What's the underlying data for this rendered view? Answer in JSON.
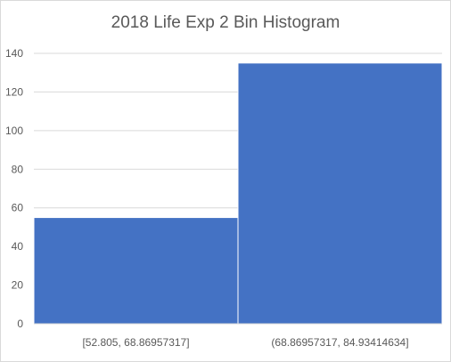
{
  "chart_data": {
    "type": "bar",
    "title": "2018 Life Exp 2 Bin Histogram",
    "categories": [
      "[52.805, 68.86957317]",
      "(68.86957317, 84.93414634]"
    ],
    "values": [
      55,
      135
    ],
    "xlabel": "",
    "ylabel": "",
    "ylim": [
      0,
      140
    ],
    "yticks": [
      0,
      20,
      40,
      60,
      80,
      100,
      120,
      140
    ],
    "grid": true,
    "legend": "none",
    "bar_color": "#4472c4",
    "grid_color": "#d9d9d9",
    "text_color": "#595959"
  }
}
